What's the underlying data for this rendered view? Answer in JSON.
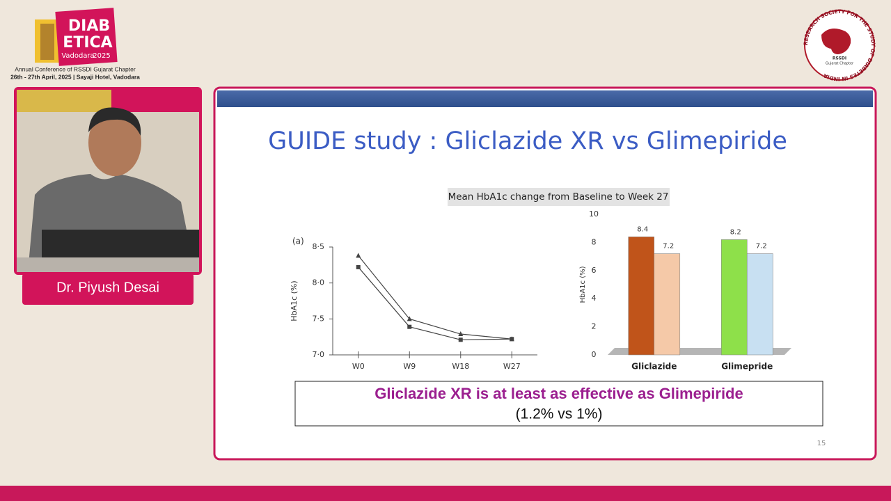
{
  "header": {
    "logo_line1": "DIAB",
    "logo_line2": "ETICA",
    "logo_city": "Vadodara",
    "logo_year": "2025",
    "conference": "Annual Conference of RSSDI Gujarat Chapter",
    "dates": "26th - 27th April, 2025 | Sayaji Hotel, Vadodara"
  },
  "society_logo": {
    "ring_text": "RESEARCH SOCIETY FOR THE STUDY OF DIABETES IN INDIA",
    "name": "RSSDI",
    "chapter": "Gujarat Chapter"
  },
  "speaker": {
    "name": "Dr. Piyush Desai"
  },
  "slide": {
    "title": "GUIDE study : Gliclazide XR vs Glimepiride",
    "conclusion": "Gliclazide XR is at least as effective as Glimepiride",
    "conclusion_detail": "(1.2% vs 1%)",
    "page_number": "15"
  },
  "chart_data": [
    {
      "type": "line",
      "panel_label": "(a)",
      "ylabel": "HbA1c (%)",
      "categories": [
        "W0",
        "W9",
        "W18",
        "W27"
      ],
      "series": [
        {
          "color": "#444444",
          "marker": "triangle",
          "values": [
            8.38,
            7.5,
            7.29,
            7.22
          ]
        },
        {
          "color": "#444444",
          "marker": "square",
          "values": [
            8.22,
            7.39,
            7.21,
            7.22
          ]
        }
      ],
      "ylim": [
        7.0,
        8.5
      ],
      "yticks": [
        {
          "value": 7.0,
          "label": "7·0"
        },
        {
          "value": 7.5,
          "label": "7·5"
        },
        {
          "value": 8.0,
          "label": "8·0"
        },
        {
          "value": 8.5,
          "label": "8·5"
        }
      ]
    },
    {
      "type": "bar",
      "title": "Mean HbA1c change from Baseline to Week 27",
      "ylabel": "HbA1c (%)",
      "categories": [
        "Gliclazide",
        "Glimepride"
      ],
      "series": [
        {
          "colors": [
            "#c0541a",
            "#8ee04a"
          ],
          "values": [
            8.4,
            8.2
          ]
        },
        {
          "colors": [
            "#f5c9a8",
            "#c8e0f2"
          ],
          "values": [
            7.2,
            7.2
          ]
        }
      ],
      "ylim": [
        0,
        10
      ],
      "yticks": [
        0,
        2,
        4,
        6,
        8,
        10
      ]
    }
  ]
}
